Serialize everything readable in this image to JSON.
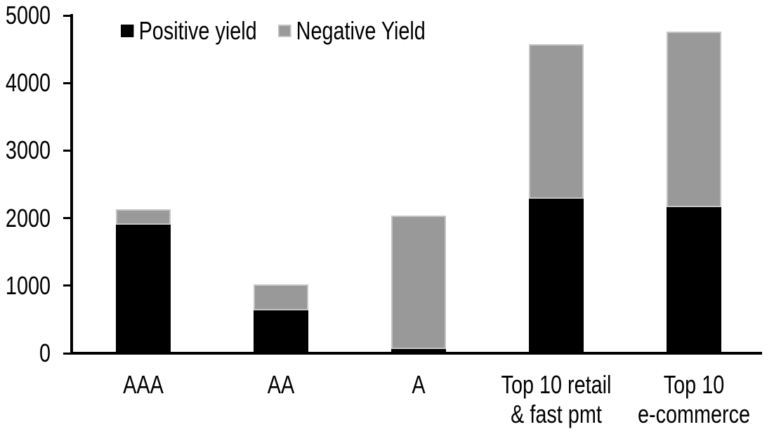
{
  "chart_data": {
    "type": "bar",
    "stacked": true,
    "title": "",
    "categories": [
      "AAA",
      "AA",
      "A",
      "Top 10 retail\n& fast pmt",
      "Top 10\ne-commerce"
    ],
    "series": [
      {
        "name": "Positive yield",
        "color": "#000000",
        "values": [
          1890,
          620,
          40,
          2280,
          2150
        ]
      },
      {
        "name": "Negative Yield",
        "color": "#999999",
        "values": [
          230,
          385,
          1990,
          2290,
          2610
        ]
      }
    ],
    "xlabel": "",
    "ylabel": "",
    "ylim": [
      0,
      5000
    ],
    "yticks": [
      0,
      1000,
      2000,
      3000,
      4000,
      5000
    ],
    "legend": {
      "position": "top",
      "entries": [
        "Positive yield",
        "Negative Yield"
      ]
    },
    "grid": false,
    "axis_color": "#000000",
    "negative_border_color": "#c4c4c4",
    "background": "#ffffff"
  }
}
